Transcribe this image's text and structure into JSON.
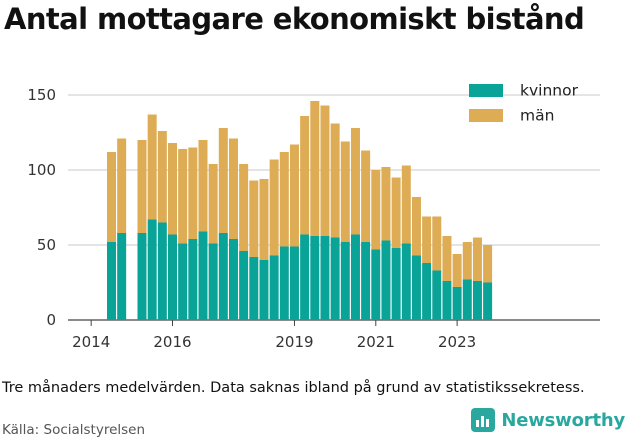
{
  "title": "Antal mottagare ekonomiskt bistånd",
  "note": "Tre månaders medelvärden. Data saknas ibland på grund av statistikssekretess.",
  "source": "Källa: Socialstyrelsen",
  "brand": {
    "name": "Newsworthy",
    "icon": "newsworthy-logo-icon",
    "color": "#2aa8a0"
  },
  "chart_data": {
    "type": "bar",
    "stacked": true,
    "x_axis": {
      "type": "date-quarter",
      "ticks": [
        "2014",
        "2016",
        "2019",
        "2021",
        "2023"
      ]
    },
    "y_axis": {
      "ticks": [
        0,
        50,
        100,
        150
      ],
      "ylim": [
        0,
        160
      ],
      "grid": true
    },
    "legend": {
      "placement": "top-right"
    },
    "categories": [
      "2014Q3",
      "2014Q4",
      "2015Q1",
      "2015Q2",
      "2015Q3",
      "2015Q4",
      "2016Q1",
      "2016Q2",
      "2016Q3",
      "2016Q4",
      "2017Q1",
      "2017Q2",
      "2017Q3",
      "2017Q4",
      "2018Q1",
      "2018Q2",
      "2018Q3",
      "2018Q4",
      "2019Q1",
      "2019Q2",
      "2019Q3",
      "2019Q4",
      "2020Q1",
      "2020Q2",
      "2020Q3",
      "2020Q4",
      "2021Q1",
      "2021Q2",
      "2021Q3",
      "2021Q4",
      "2022Q1",
      "2022Q2",
      "2022Q3",
      "2022Q4",
      "2023Q1",
      "2023Q2",
      "2023Q3",
      "2023Q4"
    ],
    "series": [
      {
        "name": "kvinnor",
        "color": "#0aa398",
        "values": [
          52,
          58,
          null,
          58,
          67,
          65,
          57,
          51,
          54,
          59,
          51,
          58,
          54,
          46,
          42,
          40,
          43,
          49,
          49,
          57,
          56,
          56,
          55,
          52,
          57,
          52,
          47,
          53,
          48,
          51,
          43,
          38,
          33,
          26,
          22,
          27,
          26,
          25
        ]
      },
      {
        "name": "män",
        "color": "#ddac55",
        "values": [
          60,
          63,
          null,
          62,
          70,
          61,
          61,
          63,
          61,
          61,
          53,
          70,
          67,
          58,
          51,
          54,
          64,
          63,
          68,
          79,
          90,
          87,
          76,
          67,
          71,
          61,
          53,
          49,
          47,
          52,
          39,
          31,
          36,
          30,
          22,
          25,
          29,
          25
        ]
      }
    ]
  }
}
